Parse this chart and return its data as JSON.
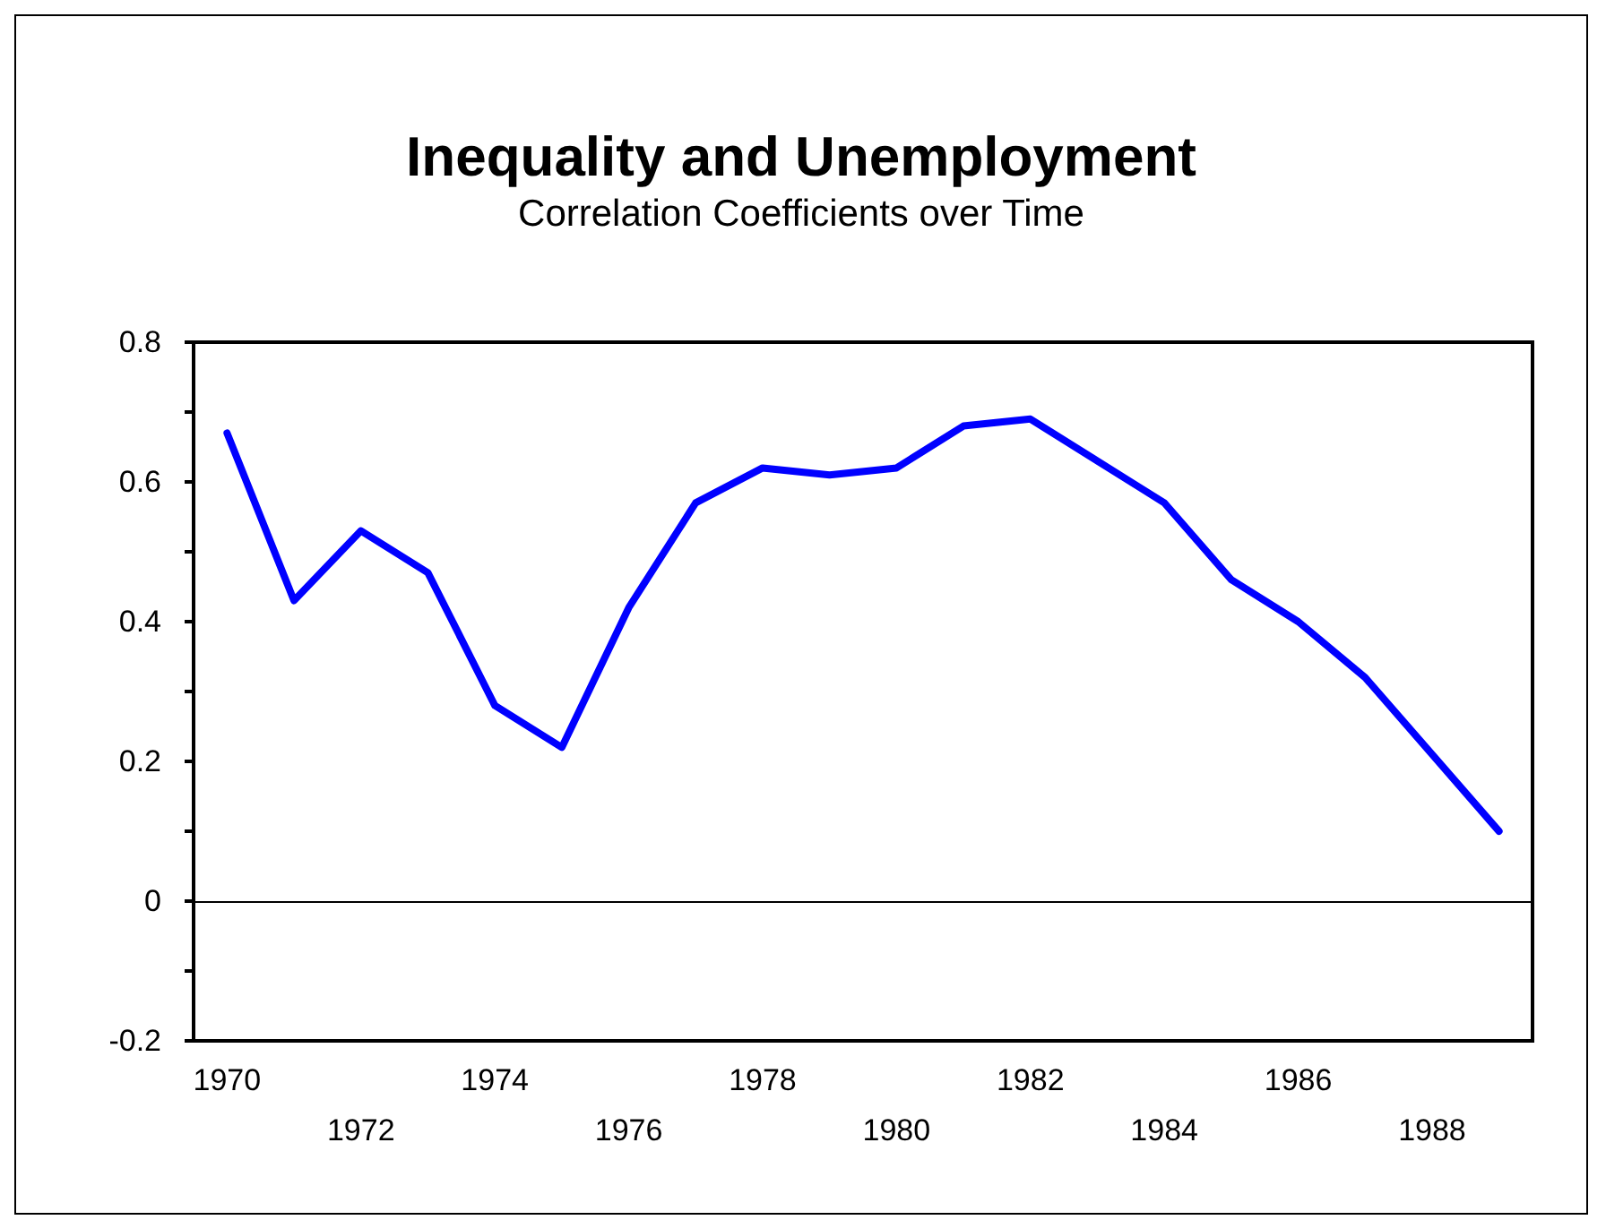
{
  "chart_data": {
    "type": "line",
    "title": "Inequality and Unemployment",
    "subtitle": "Correlation Coefficients over Time",
    "categories": [
      "1970",
      null,
      "1972",
      null,
      "1974",
      null,
      "1976",
      null,
      "1978",
      null,
      "1980",
      null,
      "1982",
      null,
      "1984",
      null,
      "1986",
      null,
      "1988",
      null
    ],
    "series": [
      {
        "color": "#0000ff",
        "values": [
          0.67,
          0.43,
          0.53,
          0.47,
          0.28,
          0.22,
          0.42,
          0.57,
          0.62,
          0.61,
          0.62,
          0.68,
          0.69,
          0.63,
          0.57,
          0.46,
          0.4,
          0.32,
          0.21,
          0.1
        ]
      }
    ],
    "ylim": [
      -0.2,
      0.8
    ],
    "yticks": [
      -0.2,
      {
        "value": -0.1,
        "label": null
      },
      0,
      {
        "value": 0.1,
        "label": null
      },
      0.2,
      {
        "value": 0.3,
        "label": null
      },
      0.4,
      {
        "value": 0.5,
        "label": null
      },
      0.6,
      {
        "value": 0.7,
        "label": null
      },
      0.8
    ],
    "ref_lines": [
      {
        "axis": "y",
        "value": 0,
        "color": "#000000"
      }
    ],
    "grid": false,
    "marker": "none",
    "line_style": "solid"
  }
}
